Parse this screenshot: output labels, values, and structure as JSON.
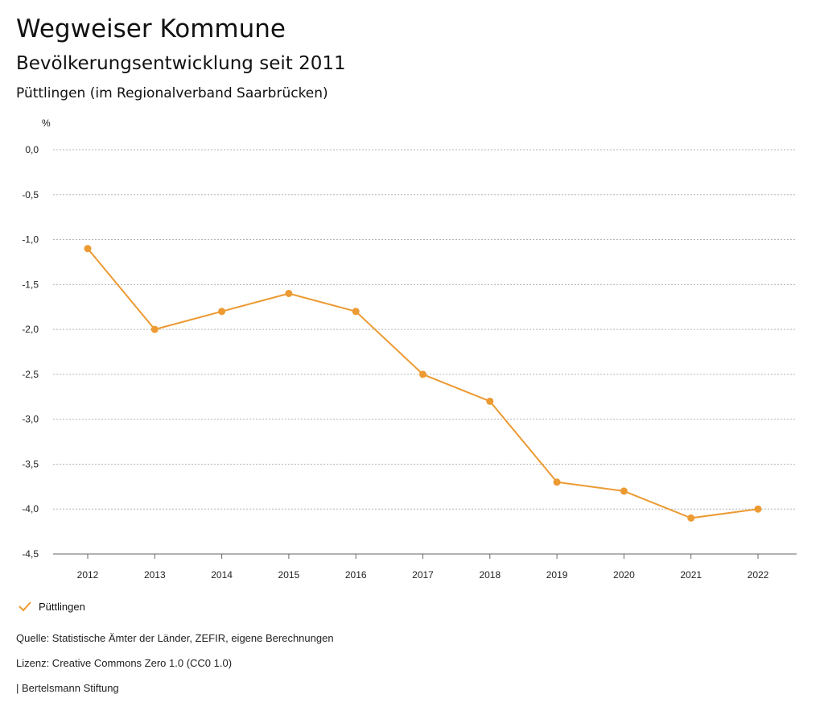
{
  "header": {
    "title": "Wegweiser Kommune",
    "subtitle": "Bevölkerungsentwicklung seit 2011",
    "region": "Püttlingen (im Regionalverband Saarbrücken)"
  },
  "colors": {
    "accent": "#ec9a32",
    "grid": "#b5b5b5"
  },
  "chart_data": {
    "type": "line",
    "ylabel": "%",
    "xlabel": "",
    "ylim": [
      -4.5,
      0.0
    ],
    "yticks": [
      "0,0",
      "-0,5",
      "-1,0",
      "-1,5",
      "-2,0",
      "-2,5",
      "-3,0",
      "-3,5",
      "-4,0",
      "-4,5"
    ],
    "ytick_values": [
      0.0,
      -0.5,
      -1.0,
      -1.5,
      -2.0,
      -2.5,
      -3.0,
      -3.5,
      -4.0,
      -4.5
    ],
    "grid": true,
    "legend_position": "bottom-left",
    "categories": [
      "2012",
      "2013",
      "2014",
      "2015",
      "2016",
      "2017",
      "2018",
      "2019",
      "2020",
      "2021",
      "2022"
    ],
    "series": [
      {
        "name": "Püttlingen",
        "values": [
          -1.1,
          -2.0,
          -1.8,
          -1.6,
          -1.8,
          -2.5,
          -2.8,
          -3.7,
          -3.8,
          -4.1,
          -4.0
        ]
      }
    ]
  },
  "legend": {
    "label": "Püttlingen"
  },
  "footer": {
    "source": "Quelle: Statistische Ämter der Länder, ZEFIR, eigene Berechnungen",
    "license": "Lizenz: Creative Commons Zero 1.0 (CC0 1.0)",
    "publisher": "| Bertelsmann Stiftung"
  }
}
